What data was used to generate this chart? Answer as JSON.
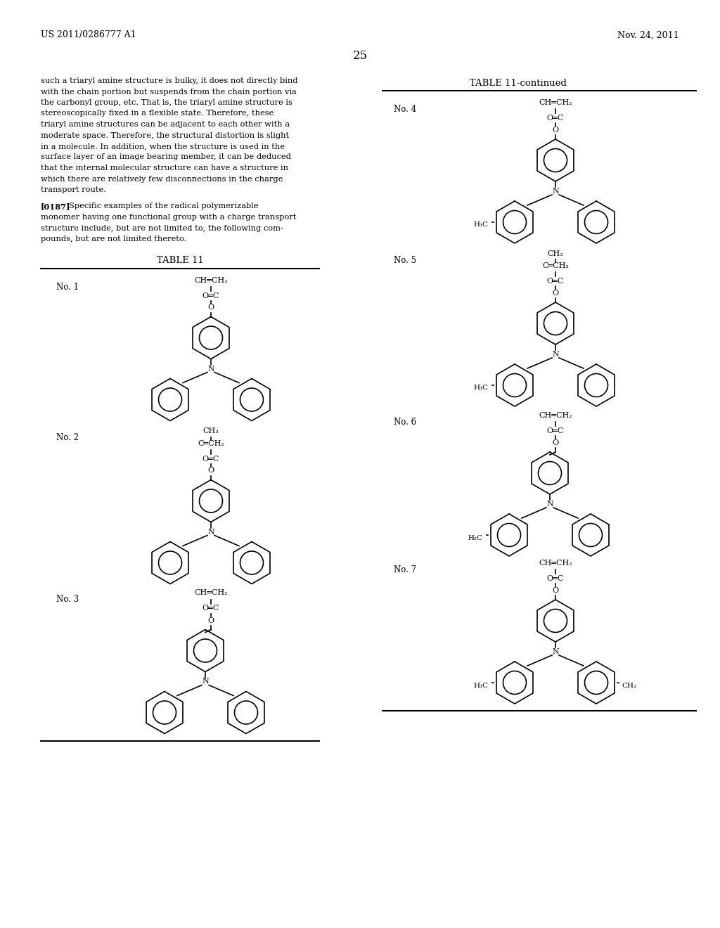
{
  "page_number": "25",
  "header_left": "US 2011/0286777 A1",
  "header_right": "Nov. 24, 2011",
  "background_color": "#ffffff",
  "text_color": "#000000",
  "body_text_lines": [
    "such a triaryl amine structure is bulky, it does not directly bind",
    "with the chain portion but suspends from the chain portion via",
    "the carbonyl group, etc. That is, the triaryl amine structure is",
    "stereoscopically fixed in a flexible state. Therefore, these",
    "triaryl amine structures can be adjacent to each other with a",
    "moderate space. Therefore, the structural distortion is slight",
    "in a molecule. In addition, when the structure is used in the",
    "surface layer of an image bearing member, it can be deduced",
    "that the internal molecular structure can have a structure in",
    "which there are relatively few disconnections in the charge",
    "transport route."
  ],
  "para0187_lines": [
    "[0187]  Specific examples of the radical polymerizable",
    "monomer having one functional group with a charge transport",
    "structure include, but are not limited to, the following com-",
    "pounds, but are not limited thereto."
  ],
  "table11_title": "TABLE 11",
  "table11cont_title": "TABLE 11-continued"
}
